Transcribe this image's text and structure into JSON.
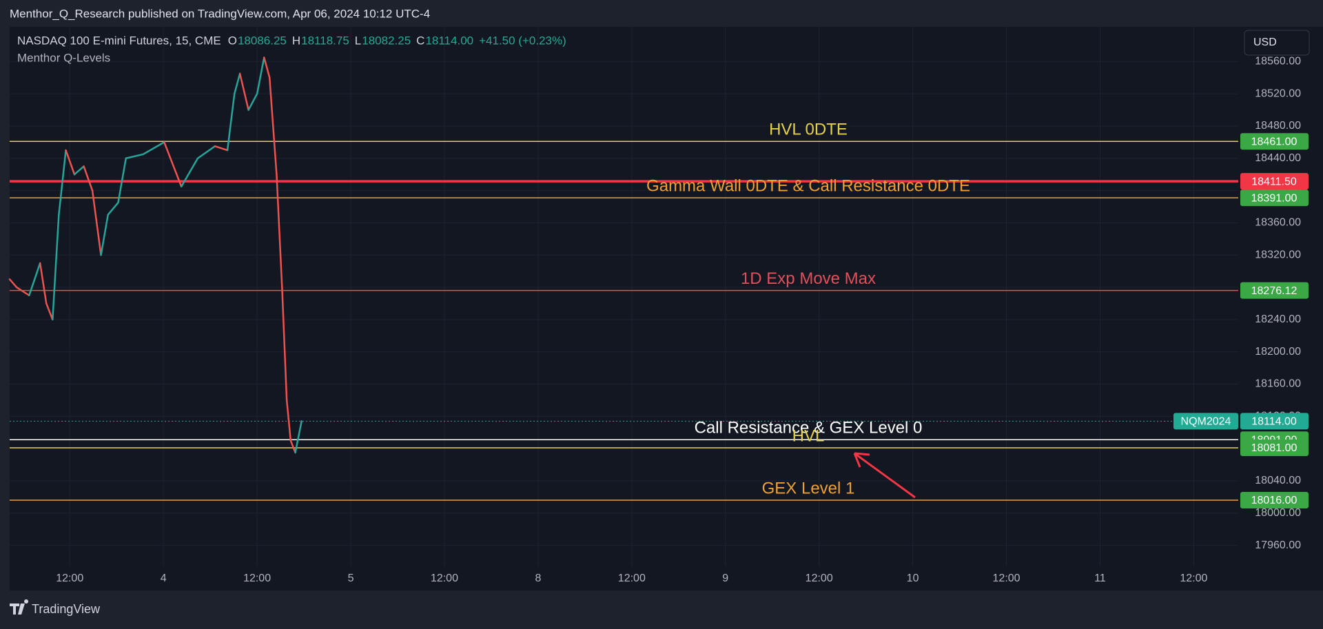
{
  "header": {
    "published": "Menthor_Q_Research published on TradingView.com, Apr 06, 2024 10:12 UTC-4",
    "currency": "USD",
    "brand": "TradingView"
  },
  "chart_data": {
    "type": "candlestick-levels",
    "title": "NASDAQ 100 E-mini Futures, 15, CME",
    "ohlc": [
      {
        "key": "O",
        "value": "18086.25"
      },
      {
        "key": "H",
        "value": "18118.75"
      },
      {
        "key": "L",
        "value": "18082.25"
      },
      {
        "key": "C",
        "value": "18114.00"
      }
    ],
    "change": "+41.50 (+0.23%)",
    "indicator": "Menthor Q-Levels",
    "price": {
      "up_color": "#26a69a",
      "down_color": "#ef5350",
      "x": [
        -19.7,
        -18.8,
        -17.2,
        -15.8,
        -15.0,
        -14.2,
        -13.4,
        -12.5,
        -11.4,
        -10.2,
        -9.1,
        -8.0,
        -7.1,
        -5.8,
        -4.8,
        -2.6,
        0.1,
        2.3,
        4.4,
        6.6,
        8.2,
        9.1,
        9.8,
        10.9,
        12.0,
        12.9,
        13.6,
        14.5,
        15.2,
        15.8,
        16.3,
        16.9,
        17.7
      ],
      "values": [
        18290,
        18280,
        18270,
        18310,
        18260,
        18240,
        18370,
        18450,
        18420,
        18430,
        18400,
        18320,
        18370,
        18385,
        18440,
        18445,
        18460,
        18405,
        18440,
        18455,
        18450,
        18520,
        18545,
        18500,
        18520,
        18565,
        18540,
        18420,
        18280,
        18140,
        18090,
        18075,
        18114
      ]
    },
    "last": {
      "name": "NQM2024",
      "value": 18114,
      "value_label": "18114.00",
      "color": "#22ab94"
    },
    "levels": [
      {
        "name": "HVL 0DTE",
        "value": 18461,
        "value_label": "18461.00",
        "color": "#e6d14a",
        "tag_color": "#3aa845",
        "width": 1.5
      },
      {
        "value": 18411.5,
        "value_label": "18411.50",
        "color": "#f23645",
        "tag_color": "#f23645",
        "width": 3.5
      },
      {
        "name": "Gamma Wall 0DTE & Call Resistance 0DTE",
        "value": 18391,
        "value_label": "18391.00",
        "color": "#f0a030",
        "tag_color": "#3aa845",
        "width": 1.5
      },
      {
        "name": "1D Exp Move Max",
        "value": 18276.12,
        "value_label": "18276.12",
        "color": "#e0505a",
        "tag_color": "#3aa845",
        "width": 1.5
      },
      {
        "name": "Call Resistance & GEX Level 0",
        "value": 18091,
        "value_label": "18091.00",
        "color": "#ffffff",
        "tag_color": "#3aa845",
        "width": 1.5
      },
      {
        "name": "HVL",
        "value": 18081,
        "value_label": "18081.00",
        "color": "#e6d14a",
        "tag_color": "#3aa845",
        "width": 1.5
      },
      {
        "name": "GEX Level 1",
        "value": 18016,
        "value_label": "18016.00",
        "color": "#f0a030",
        "tag_color": "#3aa845",
        "width": 1.5
      }
    ],
    "xlim": [
      -19.7,
      137.7
    ],
    "xticks": [
      {
        "value": -12,
        "label": "12:00"
      },
      {
        "value": 0,
        "label": "4"
      },
      {
        "value": 12,
        "label": "12:00"
      },
      {
        "value": 24,
        "label": "5"
      },
      {
        "value": 36,
        "label": "12:00"
      },
      {
        "value": 48,
        "label": "8"
      },
      {
        "value": 60,
        "label": "12:00"
      },
      {
        "value": 72,
        "label": "9"
      },
      {
        "value": 84,
        "label": "12:00"
      },
      {
        "value": 96,
        "label": "10"
      },
      {
        "value": 108,
        "label": "12:00"
      },
      {
        "value": 120,
        "label": "11"
      },
      {
        "value": 132,
        "label": "12:00"
      }
    ],
    "ylim": [
      17934,
      18603
    ],
    "yticks": [
      {
        "value": 17960,
        "label": "17960.00"
      },
      {
        "value": 18000,
        "label": "18000.00"
      },
      {
        "value": 18040,
        "label": "18040.00"
      },
      {
        "value": 18080,
        "label": "18080.00"
      },
      {
        "value": 18120,
        "label": "18120.00"
      },
      {
        "value": 18160,
        "label": "18160.00"
      },
      {
        "value": 18200,
        "label": "18200.00"
      },
      {
        "value": 18240,
        "label": "18240.00"
      },
      {
        "value": 18280,
        "label": "18280.00"
      },
      {
        "value": 18320,
        "label": "18320.00"
      },
      {
        "value": 18360,
        "label": "18360.00"
      },
      {
        "value": 18400,
        "label": "18400.00"
      },
      {
        "value": 18440,
        "label": "18440.00"
      },
      {
        "value": 18480,
        "label": "18480.00"
      },
      {
        "value": 18520,
        "label": "18520.00"
      },
      {
        "value": 18560,
        "label": "18560.00"
      }
    ],
    "grid": true
  }
}
